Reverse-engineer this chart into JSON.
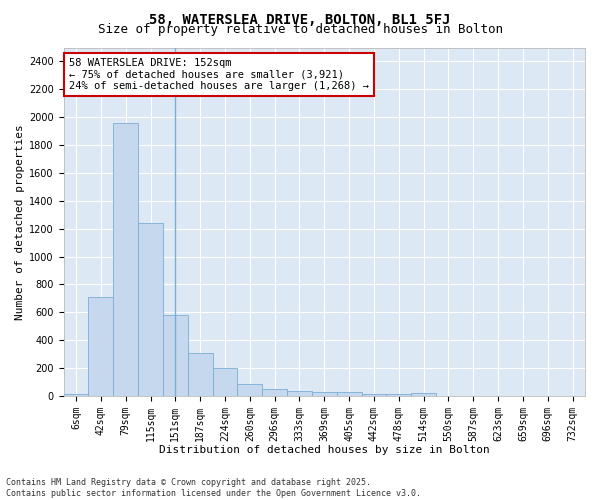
{
  "title1": "58, WATERSLEA DRIVE, BOLTON, BL1 5FJ",
  "title2": "Size of property relative to detached houses in Bolton",
  "xlabel": "Distribution of detached houses by size in Bolton",
  "ylabel": "Number of detached properties",
  "footer1": "Contains HM Land Registry data © Crown copyright and database right 2025.",
  "footer2": "Contains public sector information licensed under the Open Government Licence v3.0.",
  "categories": [
    "6sqm",
    "42sqm",
    "79sqm",
    "115sqm",
    "151sqm",
    "187sqm",
    "224sqm",
    "260sqm",
    "296sqm",
    "333sqm",
    "369sqm",
    "405sqm",
    "442sqm",
    "478sqm",
    "514sqm",
    "550sqm",
    "587sqm",
    "623sqm",
    "659sqm",
    "696sqm",
    "732sqm"
  ],
  "values": [
    15,
    710,
    1960,
    1240,
    580,
    305,
    200,
    85,
    50,
    35,
    30,
    30,
    15,
    15,
    20,
    0,
    0,
    0,
    0,
    0,
    0
  ],
  "bar_color": "#c5d8ee",
  "bar_edge_color": "#7aaed6",
  "vline_x": 4,
  "annotation_text": "58 WATERSLEA DRIVE: 152sqm\n← 75% of detached houses are smaller (3,921)\n24% of semi-detached houses are larger (1,268) →",
  "annotation_box_color": "#ffffff",
  "annotation_border_color": "#cc0000",
  "ylim": [
    0,
    2500
  ],
  "yticks": [
    0,
    200,
    400,
    600,
    800,
    1000,
    1200,
    1400,
    1600,
    1800,
    2000,
    2200,
    2400
  ],
  "plot_bg_color": "#dde8f5",
  "figure_bg_color": "#ffffff",
  "grid_color": "#ffffff",
  "title1_fontsize": 10,
  "title2_fontsize": 9,
  "xlabel_fontsize": 8,
  "ylabel_fontsize": 8,
  "tick_fontsize": 7,
  "annotation_fontsize": 7.5,
  "footer_fontsize": 6
}
